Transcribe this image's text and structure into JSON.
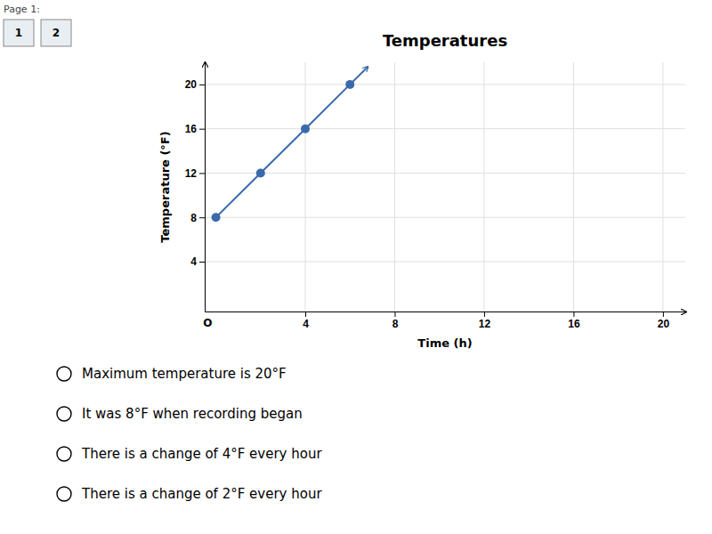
{
  "chart_data": {
    "type": "line",
    "title": "Temperatures",
    "x_label": "Time (h)",
    "y_label": "Temperature (°F)",
    "x": [
      0,
      2,
      4,
      6
    ],
    "values": [
      8,
      12,
      16,
      20
    ],
    "color": "#3a6aab",
    "marker": "circle",
    "xlim": [
      -0.5,
      21
    ],
    "ylim": [
      -0.5,
      22
    ],
    "xticks": [
      4,
      8,
      12,
      16,
      20
    ],
    "yticks": [
      4,
      8,
      12,
      16,
      20
    ],
    "grid": true,
    "annotations": [
      "O"
    ],
    "options": [
      "Maximum temperature is 20°F",
      "It was 8°F when recording began",
      "There is a change of 4°F every hour",
      "There is a change of 2°F every hour"
    ],
    "page_label": "Page 1:",
    "tab_labels": [
      "1",
      "2"
    ]
  }
}
